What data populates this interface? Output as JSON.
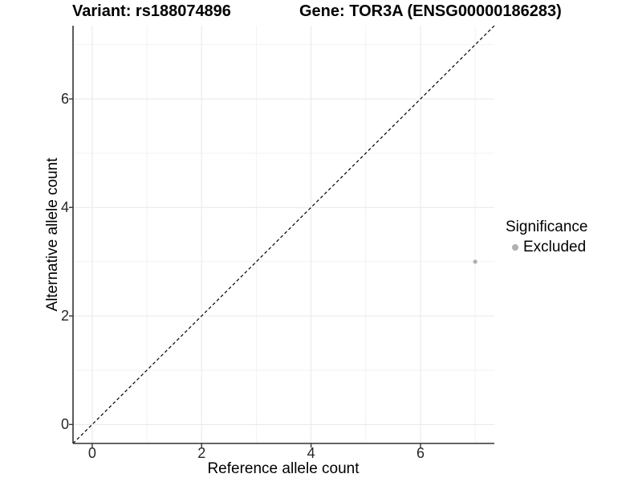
{
  "chart_data": {
    "type": "scatter",
    "title_left": "Variant: rs188074896",
    "title_right": "Gene: TOR3A (ENSG00000186283)",
    "xlabel": "Reference allele count",
    "ylabel": "Alternative allele count",
    "xlim": [
      -0.35,
      7.35
    ],
    "ylim": [
      -0.35,
      7.35
    ],
    "x_ticks": [
      0,
      2,
      4,
      6
    ],
    "y_ticks": [
      0,
      2,
      4,
      6
    ],
    "x_minor_ticks": [
      1,
      3,
      5,
      7
    ],
    "y_minor_ticks": [
      1,
      3,
      5,
      7
    ],
    "grid": true,
    "series": [
      {
        "name": "Excluded",
        "color": "#b0b0b0",
        "points": [
          {
            "x": 7,
            "y": 3
          }
        ]
      }
    ],
    "reference_line": {
      "kind": "identity",
      "slope": 1,
      "intercept": 0,
      "style": "dashed",
      "color": "#000000"
    },
    "legend": {
      "title": "Significance",
      "position": "right",
      "items": [
        {
          "label": "Excluded",
          "color": "#b0b0b0"
        }
      ]
    },
    "colors": {
      "background": "#ffffff",
      "grid_major": "#e8e8e8",
      "grid_minor": "#f2f2f2",
      "axis_line": "#333333",
      "tick_label": "#262626",
      "point": "#b0b0b0"
    }
  }
}
